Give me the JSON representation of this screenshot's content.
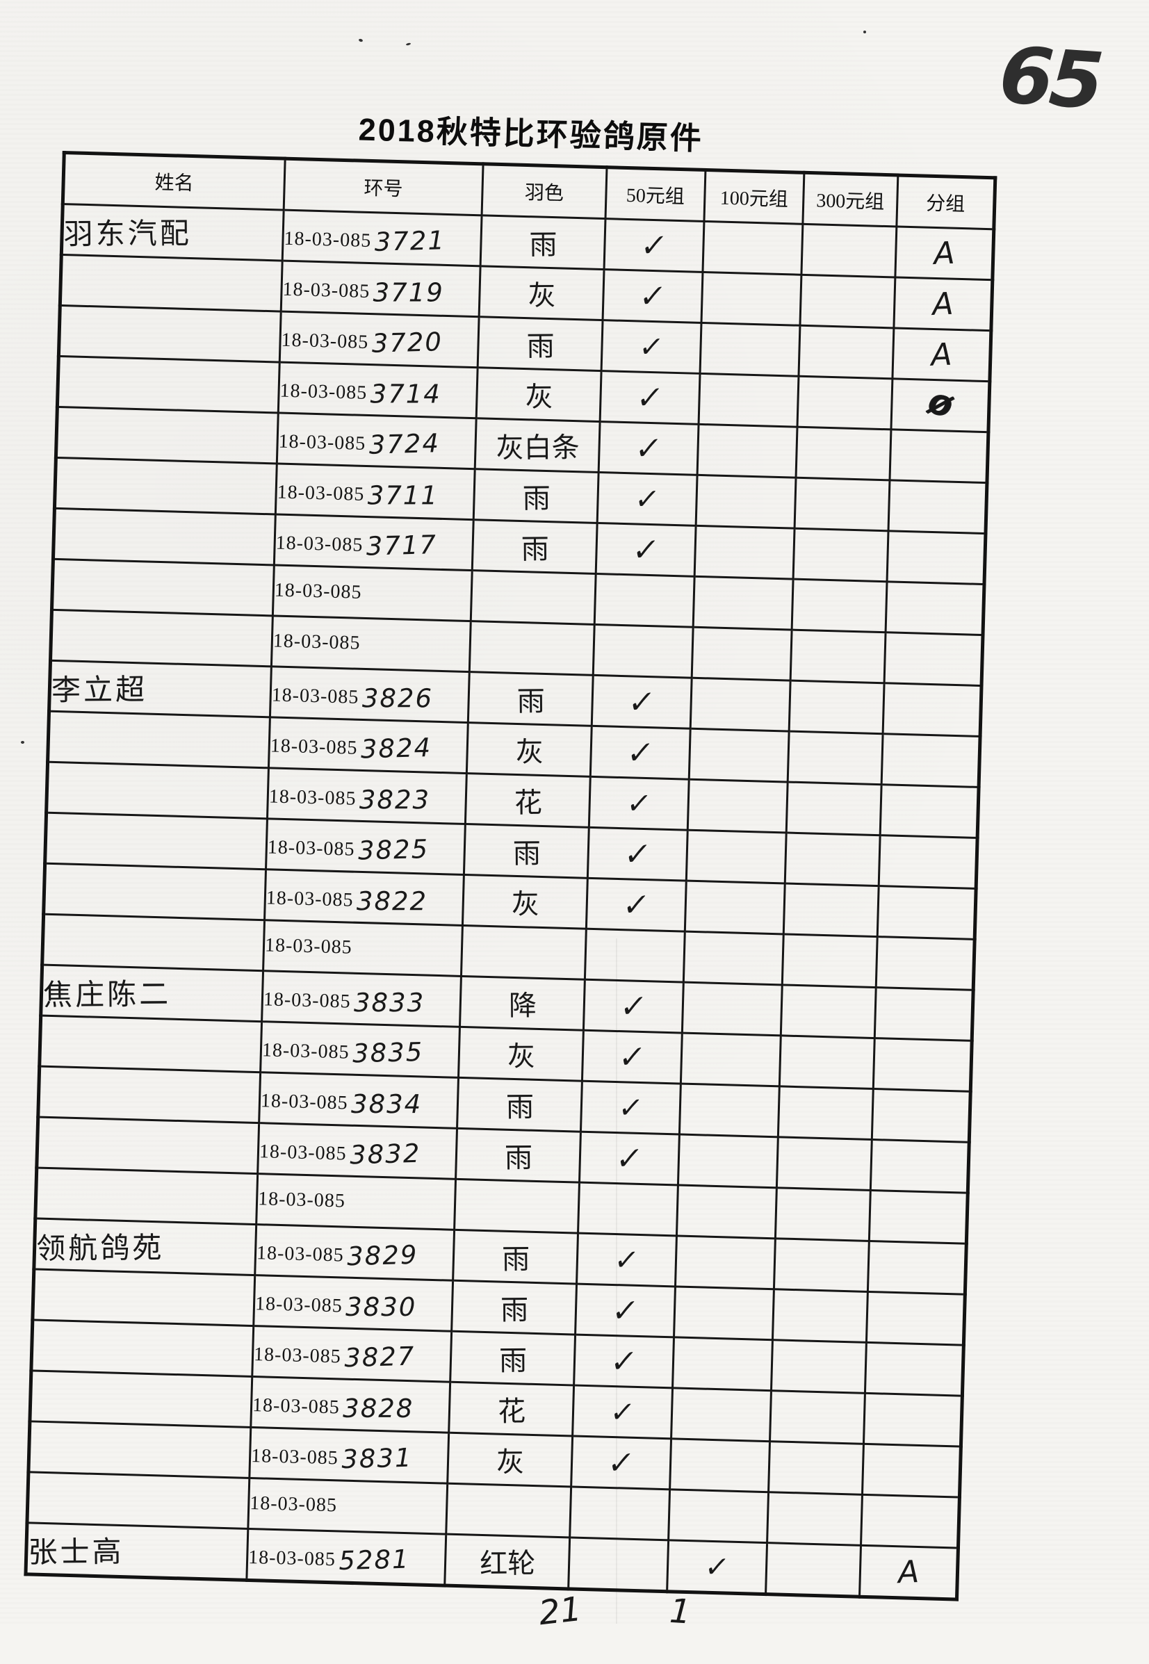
{
  "page": {
    "number_handwritten": "65",
    "title": "2018秋特比环验鸽原件"
  },
  "table": {
    "headers": {
      "name": "姓名",
      "ring": "环号",
      "color": "羽色",
      "g50": "50元组",
      "g100": "100元组",
      "g300": "300元组",
      "group": "分组"
    },
    "ring_prefix": "18-03-085",
    "rows": [
      {
        "name": "羽东汽配",
        "ring_suffix": "3721",
        "color": "雨",
        "g50": "✓",
        "g100": "",
        "g300": "",
        "group": "A"
      },
      {
        "name": "",
        "ring_suffix": "3719",
        "color": "灰",
        "g50": "✓",
        "g100": "",
        "g300": "",
        "group": "A"
      },
      {
        "name": "",
        "ring_suffix": "3720",
        "color": "雨",
        "g50": "✓",
        "g100": "",
        "g300": "",
        "group": "A"
      },
      {
        "name": "",
        "ring_suffix": "3714",
        "color": "灰",
        "g50": "✓",
        "g100": "",
        "g300": "",
        "group": "Ø"
      },
      {
        "name": "",
        "ring_suffix": "3724",
        "color": "灰白条",
        "g50": "✓",
        "g100": "",
        "g300": "",
        "group": ""
      },
      {
        "name": "",
        "ring_suffix": "3711",
        "color": "雨",
        "g50": "✓",
        "g100": "",
        "g300": "",
        "group": ""
      },
      {
        "name": "",
        "ring_suffix": "3717",
        "color": "雨",
        "g50": "✓",
        "g100": "",
        "g300": "",
        "group": ""
      },
      {
        "name": "",
        "ring_suffix": "",
        "color": "",
        "g50": "",
        "g100": "",
        "g300": "",
        "group": ""
      },
      {
        "name": "",
        "ring_suffix": "",
        "color": "",
        "g50": "",
        "g100": "",
        "g300": "",
        "group": ""
      },
      {
        "name": "李立超",
        "ring_suffix": "3826",
        "color": "雨",
        "g50": "✓",
        "g100": "",
        "g300": "",
        "group": ""
      },
      {
        "name": "",
        "ring_suffix": "3824",
        "color": "灰",
        "g50": "✓",
        "g100": "",
        "g300": "",
        "group": ""
      },
      {
        "name": "",
        "ring_suffix": "3823",
        "color": "花",
        "g50": "✓",
        "g100": "",
        "g300": "",
        "group": ""
      },
      {
        "name": "",
        "ring_suffix": "3825",
        "color": "雨",
        "g50": "✓",
        "g100": "",
        "g300": "",
        "group": ""
      },
      {
        "name": "",
        "ring_suffix": "3822",
        "color": "灰",
        "g50": "✓",
        "g100": "",
        "g300": "",
        "group": ""
      },
      {
        "name": "",
        "ring_suffix": "",
        "color": "",
        "g50": "",
        "g100": "",
        "g300": "",
        "group": ""
      },
      {
        "name": "焦庄陈二",
        "ring_suffix": "3833",
        "color": "降",
        "g50": "✓",
        "g100": "",
        "g300": "",
        "group": ""
      },
      {
        "name": "",
        "ring_suffix": "3835",
        "color": "灰",
        "g50": "✓",
        "g100": "",
        "g300": "",
        "group": ""
      },
      {
        "name": "",
        "ring_suffix": "3834",
        "color": "雨",
        "g50": "✓",
        "g100": "",
        "g300": "",
        "group": ""
      },
      {
        "name": "",
        "ring_suffix": "3832",
        "color": "雨",
        "g50": "✓",
        "g100": "",
        "g300": "",
        "group": ""
      },
      {
        "name": "",
        "ring_suffix": "",
        "color": "",
        "g50": "",
        "g100": "",
        "g300": "",
        "group": ""
      },
      {
        "name": "领航鸽苑",
        "ring_suffix": "3829",
        "color": "雨",
        "g50": "✓",
        "g100": "",
        "g300": "",
        "group": ""
      },
      {
        "name": "",
        "ring_suffix": "3830",
        "color": "雨",
        "g50": "✓",
        "g100": "",
        "g300": "",
        "group": ""
      },
      {
        "name": "",
        "ring_suffix": "3827",
        "color": "雨",
        "g50": "✓",
        "g100": "",
        "g300": "",
        "group": ""
      },
      {
        "name": "",
        "ring_suffix": "3828",
        "color": "花",
        "g50": "✓",
        "g100": "",
        "g300": "",
        "group": ""
      },
      {
        "name": "",
        "ring_suffix": "3831",
        "color": "灰",
        "g50": "✓",
        "g100": "",
        "g300": "",
        "group": ""
      },
      {
        "name": "",
        "ring_suffix": "",
        "color": "",
        "g50": "",
        "g100": "",
        "g300": "",
        "group": ""
      },
      {
        "name": "张士高",
        "ring_suffix": "5281",
        "color": "红轮",
        "g50": "",
        "g100": "✓",
        "g300": "",
        "group": "A"
      }
    ]
  },
  "totals": {
    "g50": "21",
    "g100": "1"
  },
  "colors": {
    "ink": "#191919",
    "print": "#141414",
    "paper": "#f5f4f1"
  }
}
